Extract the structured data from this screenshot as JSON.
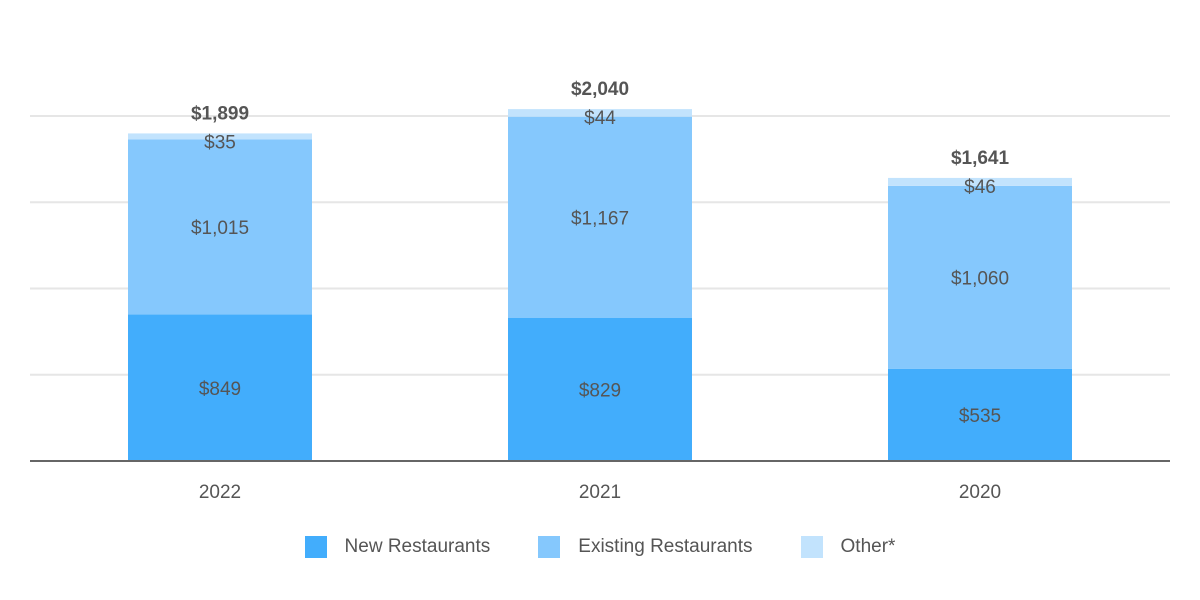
{
  "chart_data": {
    "type": "bar",
    "stacked": true,
    "categories": [
      "2022",
      "2021",
      "2020"
    ],
    "series": [
      {
        "name": "New Restaurants",
        "values": [
          849,
          829,
          535
        ],
        "labels": [
          "$849",
          "$829",
          "$535"
        ],
        "color": "#42adfc"
      },
      {
        "name": "Existing Restaurants",
        "values": [
          1015,
          1167,
          1060
        ],
        "labels": [
          "$1,015",
          "$1,167",
          "$1,060"
        ],
        "color": "#85c8fd"
      },
      {
        "name": "Other*",
        "values": [
          35,
          44,
          46
        ],
        "labels": [
          "$35",
          "$44",
          "$46"
        ],
        "color": "#c2e3fd"
      }
    ],
    "totals": [
      1899,
      2040,
      1641
    ],
    "total_labels": [
      "$1,899",
      "$2,040",
      "$1,641"
    ],
    "ylim": [
      0,
      2400
    ],
    "gridlines": true,
    "legend_position": "bottom"
  }
}
